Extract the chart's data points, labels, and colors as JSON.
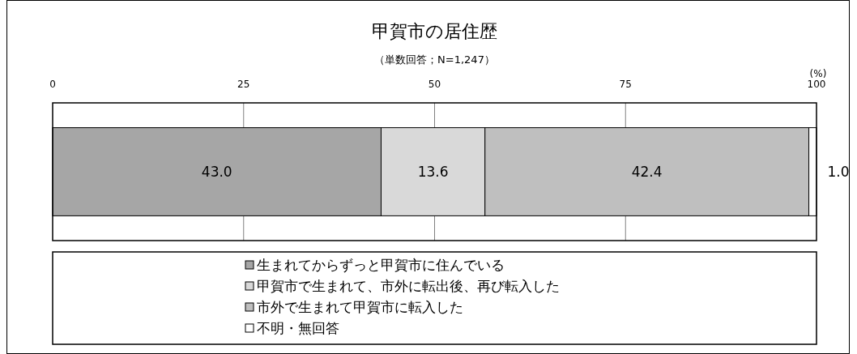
{
  "chart_data": {
    "type": "bar",
    "title": "甲賀市の居住歴",
    "subtitle": "（単数回答；N=1,247）",
    "xlabel": "(%)",
    "categories": [
      null
    ],
    "orientation": "horizontal",
    "stacked": true,
    "series": [
      {
        "name": "生まれてからずっと甲賀市に住んでいる",
        "color": "#a6a6a6",
        "values": [
          43.0
        ],
        "value_labels": [
          "43.0"
        ]
      },
      {
        "name": "甲賀市で生まれて、市外に転出後、再び転入した",
        "color": "#d9d9d9",
        "values": [
          13.6
        ],
        "value_labels": [
          "13.6"
        ]
      },
      {
        "name": "市外で生まれて甲賀市に転入した",
        "color": "#bfbfbf",
        "values": [
          42.4
        ],
        "value_labels": [
          "42.4"
        ]
      },
      {
        "name": "不明・無回答",
        "color": "#ffffff",
        "values": [
          1.0
        ],
        "value_labels": [
          "1.0"
        ]
      }
    ],
    "xlim": [
      0,
      100
    ],
    "xticks": [
      0,
      25,
      50,
      75,
      100
    ],
    "grid": "x",
    "legend": "bottom"
  }
}
